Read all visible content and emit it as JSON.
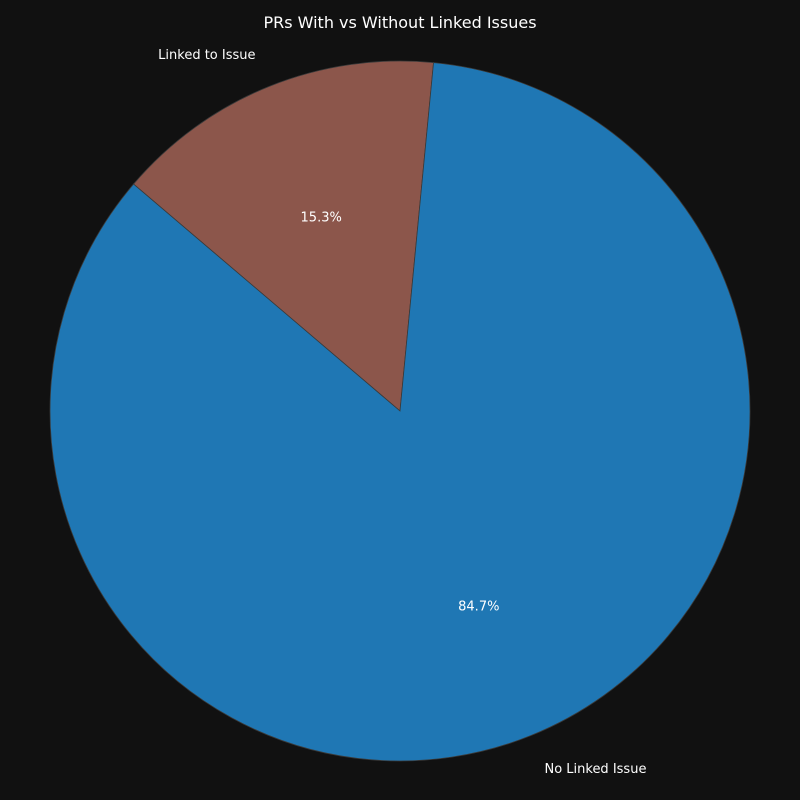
{
  "chart_data": {
    "type": "pie",
    "title": "PRs With vs Without Linked Issues",
    "slices": [
      {
        "label": "Linked to Issue",
        "value": 15.3,
        "pct_label": "15.3%",
        "color": "#8c564b"
      },
      {
        "label": "No Linked Issue",
        "value": 84.7,
        "pct_label": "84.7%",
        "color": "#1f77b4"
      }
    ],
    "start_angle_deg": 84.5,
    "direction": "counterclockwise",
    "background": "#111111"
  }
}
